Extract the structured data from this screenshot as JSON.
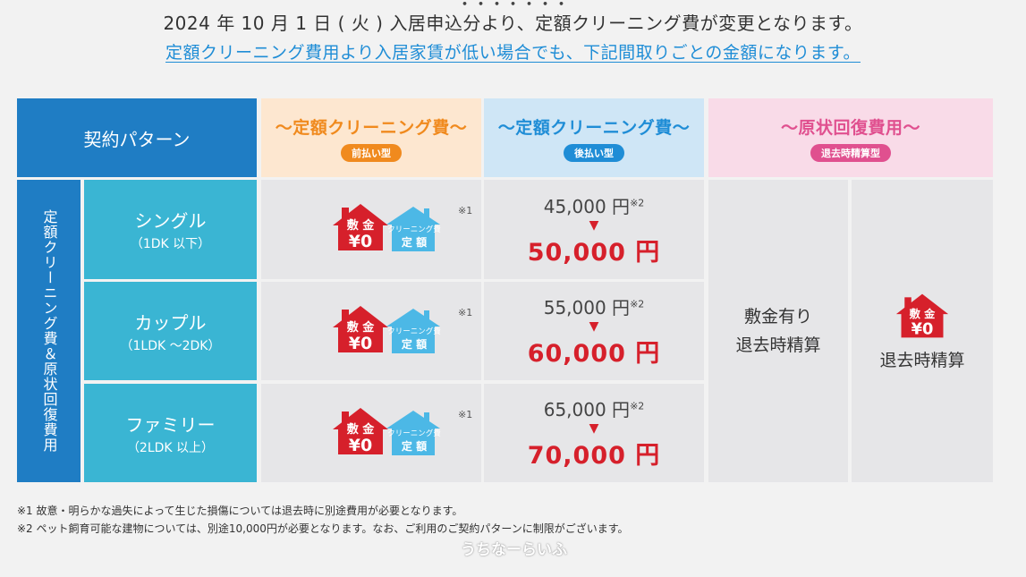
{
  "notice": {
    "line1": "2024 年 10 月 1 日 ( 火 ) 入居申込分より、定額クリーニング費が変更となります。",
    "line2": "定額クリーニング費用より入居家賃が低い場合でも、下記間取りごとの金額になります。"
  },
  "table": {
    "header_pattern": "契約パターン",
    "col_prepay": {
      "title": "〜定額クリーニング費〜",
      "pill": "前払い型"
    },
    "col_postpay": {
      "title": "〜定額クリーニング費〜",
      "pill": "後払い型"
    },
    "col_restore": {
      "title": "〜原状回復費用〜",
      "pill": "退去時精算型"
    },
    "side_label": "定額クリーニング費＆原状回復費用",
    "badge": {
      "deposit_top": "敷 金",
      "deposit_value": "¥0",
      "clean_top": "クリーニング費",
      "clean_bottom": "定 額"
    },
    "rows": [
      {
        "name": "シングル",
        "sub": "（1DK 以下）",
        "ref": "※1",
        "old": "45,000 円",
        "old_ref": "※2",
        "new": "50,000 円"
      },
      {
        "name": "カップル",
        "sub": "（1LDK 〜2DK）",
        "ref": "※1",
        "old": "55,000 円",
        "old_ref": "※2",
        "new": "60,000 円"
      },
      {
        "name": "ファミリー",
        "sub": "（2LDK 以上）",
        "ref": "※1",
        "old": "65,000 円",
        "old_ref": "※2",
        "new": "70,000 円"
      }
    ],
    "arrow": "▼",
    "restore_a": {
      "line1": "敷金有り",
      "line2": "退去時精算"
    },
    "restore_b": {
      "badge_top": "敷 金",
      "badge_value": "¥0",
      "text": "退去時精算"
    }
  },
  "footnotes": {
    "note1": "※1  故意・明らかな過失によって生じた損傷については退去時に別途費用が必要となります。",
    "note2": "※2  ペット飼育可能な建物については、別途10,000円が必要となります。なお、ご利用のご契約パターンに制限がございます。"
  },
  "watermark": "うちなーらいふ",
  "colors": {
    "blue": "#1f7dc4",
    "teal": "#3ab5d3",
    "orange": "#f08a1e",
    "pink": "#e0508f",
    "red": "#d6202b"
  }
}
